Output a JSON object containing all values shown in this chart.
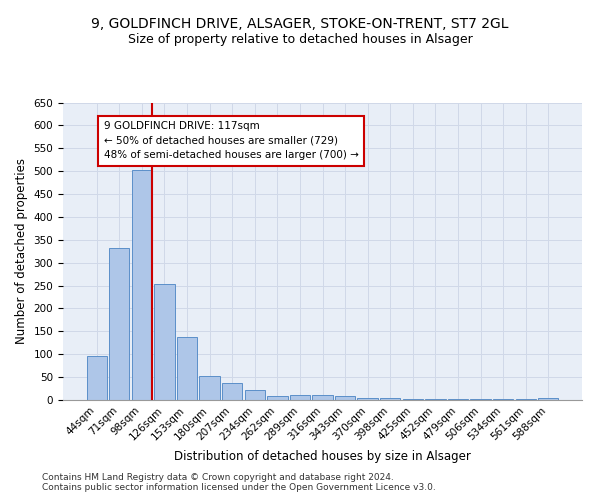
{
  "title_line1": "9, GOLDFINCH DRIVE, ALSAGER, STOKE-ON-TRENT, ST7 2GL",
  "title_line2": "Size of property relative to detached houses in Alsager",
  "xlabel": "Distribution of detached houses by size in Alsager",
  "ylabel": "Number of detached properties",
  "bar_labels": [
    "44sqm",
    "71sqm",
    "98sqm",
    "126sqm",
    "153sqm",
    "180sqm",
    "207sqm",
    "234sqm",
    "262sqm",
    "289sqm",
    "316sqm",
    "343sqm",
    "370sqm",
    "398sqm",
    "425sqm",
    "452sqm",
    "479sqm",
    "506sqm",
    "534sqm",
    "561sqm",
    "588sqm"
  ],
  "bar_values": [
    97,
    333,
    503,
    254,
    138,
    53,
    37,
    22,
    8,
    10,
    10,
    8,
    5,
    5,
    2,
    2,
    2,
    2,
    2,
    2,
    5
  ],
  "bar_color": "#aec6e8",
  "bar_edge_color": "#5b8fc9",
  "vline_x": 2.43,
  "vline_color": "#cc0000",
  "annotation_text": "9 GOLDFINCH DRIVE: 117sqm\n← 50% of detached houses are smaller (729)\n48% of semi-detached houses are larger (700) →",
  "annotation_box_color": "#ffffff",
  "annotation_box_edgecolor": "#cc0000",
  "ylim": [
    0,
    650
  ],
  "yticks": [
    0,
    50,
    100,
    150,
    200,
    250,
    300,
    350,
    400,
    450,
    500,
    550,
    600,
    650
  ],
  "grid_color": "#d0d8e8",
  "background_color": "#e8eef7",
  "footer_text": "Contains HM Land Registry data © Crown copyright and database right 2024.\nContains public sector information licensed under the Open Government Licence v3.0.",
  "title_fontsize": 10,
  "subtitle_fontsize": 9,
  "axis_label_fontsize": 8.5,
  "tick_fontsize": 7.5,
  "annotation_fontsize": 7.5,
  "footer_fontsize": 6.5
}
